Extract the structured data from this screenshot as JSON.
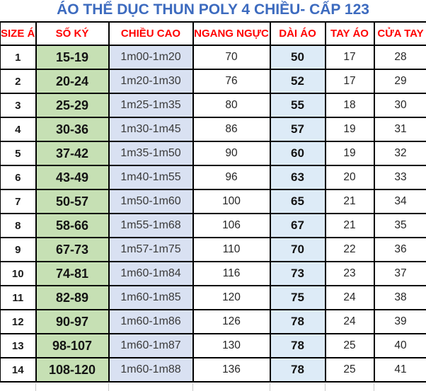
{
  "title": "ÁO THỂ DỤC THUN POLY 4 CHIỀU- CẤP 123",
  "colors": {
    "title_text": "#3D6BBF",
    "header_text": "#FF0000",
    "weight_col_bg": "#C6E0B4",
    "height_col_bg": "#D9E1F2",
    "length_col_bg": "#DDEBF7",
    "grid_border": "#000000"
  },
  "table": {
    "headers": [
      "SIZE ÁO",
      "SỐ KÝ",
      "CHIỀU CAO",
      "NGANG NGỰC",
      "DÀI ÁO",
      "TAY ÁO",
      "CỬA TAY"
    ],
    "rows": [
      [
        "1",
        "15-19",
        "1m00-1m20",
        "70",
        "50",
        "17",
        "28"
      ],
      [
        "2",
        "20-24",
        "1m20-1m30",
        "76",
        "52",
        "17",
        "29"
      ],
      [
        "3",
        "25-29",
        "1m25-1m35",
        "80",
        "55",
        "18",
        "30"
      ],
      [
        "4",
        "30-36",
        "1m30-1m45",
        "86",
        "57",
        "19",
        "31"
      ],
      [
        "5",
        "37-42",
        "1m35-1m50",
        "90",
        "60",
        "19",
        "32"
      ],
      [
        "6",
        "43-49",
        "1m40-1m55",
        "96",
        "63",
        "20",
        "33"
      ],
      [
        "7",
        "50-57",
        "1m50-1m60",
        "100",
        "65",
        "21",
        "34"
      ],
      [
        "8",
        "58-66",
        "1m55-1m68",
        "106",
        "67",
        "21",
        "35"
      ],
      [
        "9",
        "67-73",
        "1m57-1m75",
        "110",
        "70",
        "22",
        "36"
      ],
      [
        "10",
        "74-81",
        "1m60-1m84",
        "116",
        "73",
        "23",
        "37"
      ],
      [
        "11",
        "82-89",
        "1m60-1m85",
        "120",
        "75",
        "24",
        "38"
      ],
      [
        "12",
        "90-97",
        "1m60-1m86",
        "126",
        "78",
        "24",
        "39"
      ],
      [
        "13",
        "98-107",
        "1m60-1m87",
        "130",
        "78",
        "25",
        "40"
      ],
      [
        "14",
        "108-120",
        "1m60-1m88",
        "136",
        "78",
        "25",
        "41"
      ]
    ]
  }
}
